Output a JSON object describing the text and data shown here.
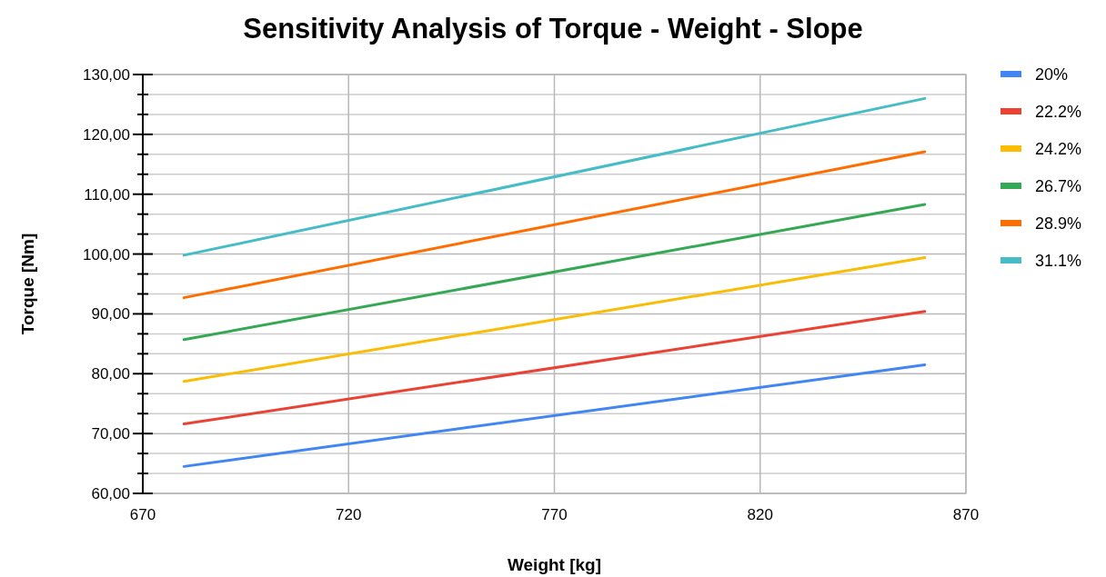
{
  "chart_data": {
    "type": "line",
    "title": "Sensitivity Analysis of Torque - Weight - Slope",
    "xlabel": "Weight [kg]",
    "ylabel": "Torque [Nm]",
    "x": [
      680,
      860
    ],
    "series": [
      {
        "name": "20%",
        "color": "#4285f4",
        "values": [
          64.5,
          81.5
        ]
      },
      {
        "name": "22.2%",
        "color": "#ea4335",
        "values": [
          71.6,
          90.4
        ]
      },
      {
        "name": "24.2%",
        "color": "#fbbc04",
        "values": [
          78.7,
          99.4
        ]
      },
      {
        "name": "26.7%",
        "color": "#34a853",
        "values": [
          85.7,
          108.3
        ]
      },
      {
        "name": "28.9%",
        "color": "#ff6d01",
        "values": [
          92.7,
          117.1
        ]
      },
      {
        "name": "31.1%",
        "color": "#46bdc6",
        "values": [
          99.8,
          126.0
        ]
      }
    ],
    "xlim": [
      670,
      870
    ],
    "xticks": [
      670,
      720,
      770,
      820,
      870
    ],
    "ylim": [
      60,
      130
    ],
    "yticks": [
      {
        "value": 60,
        "label": "60,00"
      },
      {
        "value": 70,
        "label": "70,00"
      },
      {
        "value": 80,
        "label": "80,00"
      },
      {
        "value": 90,
        "label": "90,00"
      },
      {
        "value": 100,
        "label": "100,00"
      },
      {
        "value": 110,
        "label": "110,00"
      },
      {
        "value": 120,
        "label": "120,00"
      },
      {
        "value": 130,
        "label": "130,00"
      }
    ],
    "grid": true,
    "legend": "right",
    "marker": "none",
    "line_style": "solid"
  }
}
